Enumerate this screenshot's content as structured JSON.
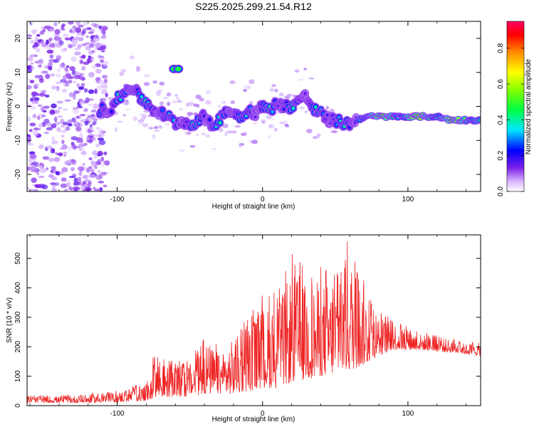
{
  "title": "S225.2025.299.21.54.R12",
  "chart_data": [
    {
      "type": "heatmap",
      "name": "spectrogram",
      "xlabel": "Height of straight line (km)",
      "ylabel": "Frequency (Hz)",
      "xlim": [
        -162,
        150
      ],
      "ylim": [
        -25,
        25
      ],
      "xticks": [
        -100,
        0,
        100
      ],
      "yticks": [
        -20,
        -10,
        0,
        10,
        20
      ],
      "ridge": {
        "x": [
          -112,
          -105,
          -100,
          -95,
          -90,
          -85,
          -80,
          -75,
          -70,
          -65,
          -60,
          -55,
          -50,
          -45,
          -40,
          -35,
          -30,
          -25,
          -20,
          -15,
          -10,
          -5,
          0,
          5,
          10,
          15,
          20,
          25,
          30,
          35,
          40,
          45,
          50,
          55,
          60,
          65,
          70,
          80,
          90,
          100,
          110,
          120,
          130,
          140,
          150
        ],
        "freq": [
          -1,
          -1,
          2,
          4,
          6,
          3,
          1,
          -1,
          -2,
          -3,
          -5,
          -4,
          -6,
          -4,
          -3,
          -6,
          -4,
          -1,
          -2,
          -3,
          -1,
          -2,
          0,
          -1,
          1,
          0,
          0,
          2,
          3,
          -1,
          -2,
          -4,
          -4,
          -5,
          -5,
          -4,
          -3,
          -3,
          -3,
          -3,
          -3,
          -3,
          -4,
          -4,
          -4
        ]
      },
      "colorbar": {
        "label": "Normalized spectral amplitude",
        "min": 0.0,
        "max": 0.95,
        "ticks": [
          "0.0",
          "0.2",
          "0.4",
          "0.6",
          "0.8"
        ]
      }
    },
    {
      "type": "line",
      "name": "snr",
      "xlabel": "Height of straight line (km)",
      "ylabel": "SNR (10 * v/v)",
      "xlim": [
        -162,
        150
      ],
      "ylim": [
        0,
        580
      ],
      "xticks": [
        -100,
        0,
        100
      ],
      "yticks": [
        0,
        100,
        200,
        300,
        400,
        500
      ],
      "color": "#ee2222",
      "envelope": {
        "x": [
          -162,
          -140,
          -120,
          -100,
          -90,
          -80,
          -75,
          -70,
          -60,
          -50,
          -40,
          -30,
          -20,
          -10,
          0,
          10,
          20,
          30,
          40,
          50,
          60,
          70,
          80,
          90,
          100,
          110,
          120,
          130,
          140,
          150
        ],
        "high": [
          35,
          35,
          40,
          50,
          70,
          80,
          200,
          160,
          150,
          160,
          260,
          200,
          260,
          300,
          380,
          390,
          520,
          470,
          480,
          460,
          580,
          440,
          320,
          300,
          270,
          250,
          240,
          230,
          215,
          220
        ],
        "low": [
          10,
          10,
          10,
          12,
          15,
          15,
          25,
          30,
          30,
          30,
          40,
          40,
          40,
          50,
          60,
          60,
          80,
          90,
          100,
          110,
          120,
          140,
          170,
          190,
          190,
          190,
          185,
          180,
          175,
          170
        ]
      }
    }
  ],
  "colors": {
    "background": "#ffffff",
    "axis": "#000000",
    "line": "#ee2222"
  }
}
